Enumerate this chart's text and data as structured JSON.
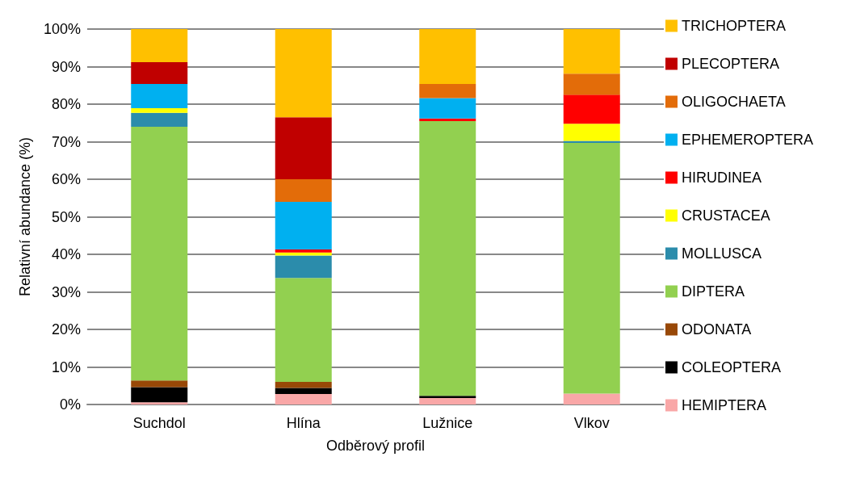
{
  "chart_data": {
    "type": "bar",
    "stacked": true,
    "xlabel": "Odběrový profil",
    "ylabel": "Relativní abundance (%)",
    "categories": [
      "Suchdol",
      "Hlína",
      "Lužnice",
      "Vlkov"
    ],
    "series": [
      {
        "name": "HEMIPTERA",
        "color": "#f9a7a7",
        "values": [
          0.6,
          2.8,
          1.7,
          2.9
        ]
      },
      {
        "name": "COLEOPTERA",
        "color": "#000000",
        "values": [
          4.0,
          1.6,
          0.6,
          0
        ]
      },
      {
        "name": "ODONATA",
        "color": "#984807",
        "values": [
          1.8,
          1.6,
          0,
          0
        ]
      },
      {
        "name": "DIPTERA",
        "color": "#92d050",
        "values": [
          67.6,
          27.7,
          73.2,
          66.8
        ]
      },
      {
        "name": "MOLLUSCA",
        "color": "#2b8cab",
        "values": [
          3.7,
          6.0,
          0,
          0.5
        ]
      },
      {
        "name": "CRUSTACEA",
        "color": "#ffff00",
        "values": [
          1.2,
          0.8,
          0,
          4.6
        ]
      },
      {
        "name": "HIRUDINEA",
        "color": "#ff0000",
        "values": [
          0,
          0.8,
          0.7,
          7.7
        ]
      },
      {
        "name": "EPHEMEROPTERA",
        "color": "#00b0f0",
        "values": [
          6.5,
          12.7,
          5.4,
          0
        ]
      },
      {
        "name": "OLIGOCHAETA",
        "color": "#e36c09",
        "values": [
          0,
          6.0,
          3.8,
          5.6
        ]
      },
      {
        "name": "PLECOPTERA",
        "color": "#c00000",
        "values": [
          5.8,
          16.5,
          0,
          0
        ]
      },
      {
        "name": "TRICHOPTERA",
        "color": "#ffc000",
        "values": [
          8.8,
          23.5,
          14.6,
          11.9
        ]
      }
    ],
    "ylim": [
      0,
      100
    ],
    "yticks": [
      {
        "value": 0,
        "label": "0%"
      },
      {
        "value": 10,
        "label": "10%"
      },
      {
        "value": 20,
        "label": "20%"
      },
      {
        "value": 30,
        "label": "30%"
      },
      {
        "value": 40,
        "label": "40%"
      },
      {
        "value": 50,
        "label": "50%"
      },
      {
        "value": 60,
        "label": "60%"
      },
      {
        "value": 70,
        "label": "70%"
      },
      {
        "value": 80,
        "label": "80%"
      },
      {
        "value": 90,
        "label": "90%"
      },
      {
        "value": 100,
        "label": "100%"
      }
    ],
    "grid": "y",
    "legend": "right"
  }
}
